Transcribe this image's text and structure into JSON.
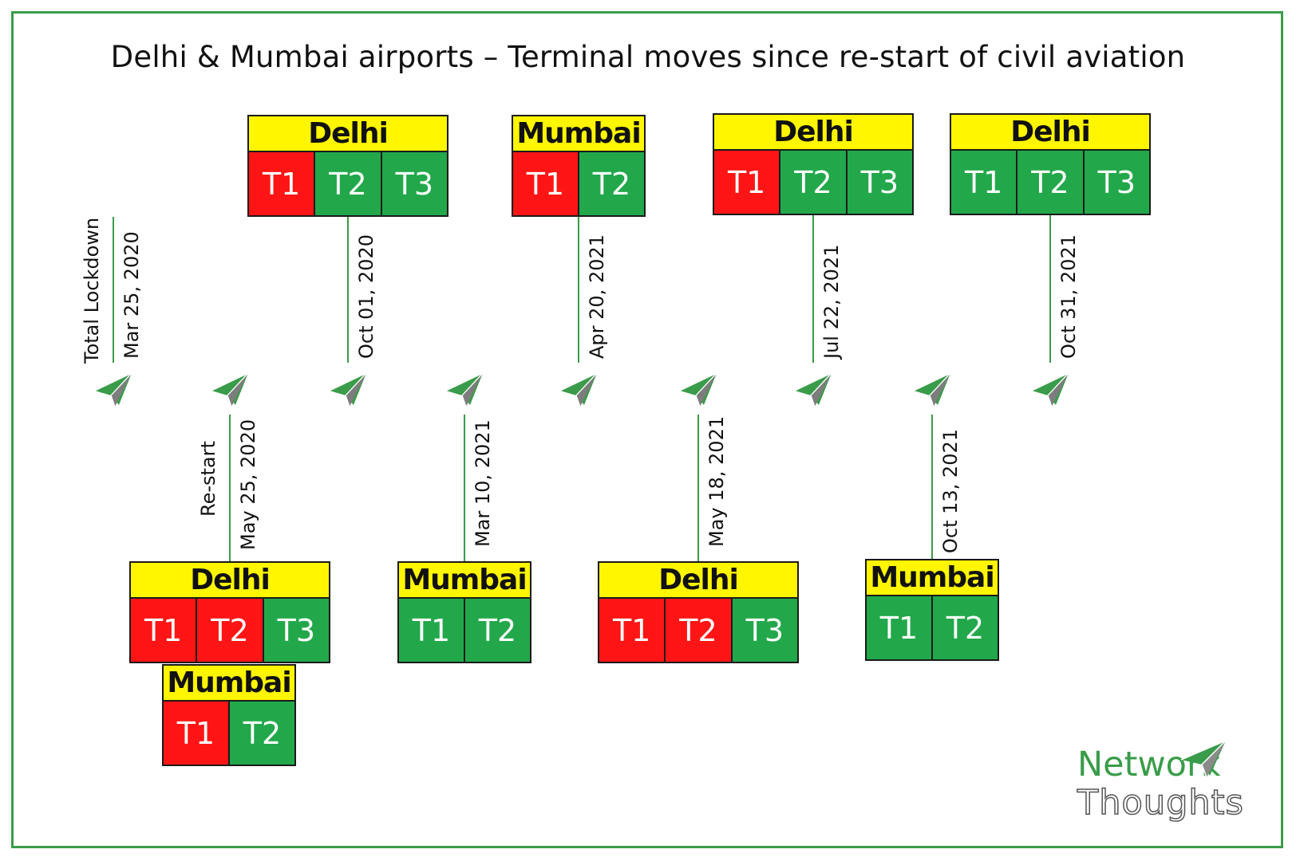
{
  "title": "Delhi & Mumbai airports – Terminal moves since re-start of civil aviation",
  "colors": {
    "closed": "#ff1515",
    "open": "#22a84a",
    "header": "#fff600",
    "accent": "#3a9c4a"
  },
  "events": [
    {
      "date": "Mar 25, 2020",
      "note": "Total Lockdown",
      "boxes": []
    },
    {
      "date": "May 25, 2020",
      "note": "Re-start",
      "boxes": [
        {
          "airport": "Delhi",
          "terminals": [
            {
              "label": "T1",
              "status": "closed"
            },
            {
              "label": "T2",
              "status": "closed"
            },
            {
              "label": "T3",
              "status": "open"
            }
          ]
        },
        {
          "airport": "Mumbai",
          "terminals": [
            {
              "label": "T1",
              "status": "closed"
            },
            {
              "label": "T2",
              "status": "open"
            }
          ]
        }
      ]
    },
    {
      "date": "Oct 01, 2020",
      "note": "",
      "boxes": [
        {
          "airport": "Delhi",
          "terminals": [
            {
              "label": "T1",
              "status": "closed"
            },
            {
              "label": "T2",
              "status": "open"
            },
            {
              "label": "T3",
              "status": "open"
            }
          ]
        }
      ]
    },
    {
      "date": "Mar 10, 2021",
      "note": "",
      "boxes": [
        {
          "airport": "Mumbai",
          "terminals": [
            {
              "label": "T1",
              "status": "open"
            },
            {
              "label": "T2",
              "status": "open"
            }
          ]
        }
      ]
    },
    {
      "date": "Apr 20, 2021",
      "note": "",
      "boxes": [
        {
          "airport": "Mumbai",
          "terminals": [
            {
              "label": "T1",
              "status": "closed"
            },
            {
              "label": "T2",
              "status": "open"
            }
          ]
        }
      ]
    },
    {
      "date": "May 18, 2021",
      "note": "",
      "boxes": [
        {
          "airport": "Delhi",
          "terminals": [
            {
              "label": "T1",
              "status": "closed"
            },
            {
              "label": "T2",
              "status": "closed"
            },
            {
              "label": "T3",
              "status": "open"
            }
          ]
        }
      ]
    },
    {
      "date": "Jul 22, 2021",
      "note": "",
      "boxes": [
        {
          "airport": "Delhi",
          "terminals": [
            {
              "label": "T1",
              "status": "closed"
            },
            {
              "label": "T2",
              "status": "open"
            },
            {
              "label": "T3",
              "status": "open"
            }
          ]
        }
      ]
    },
    {
      "date": "Oct 13, 2021",
      "note": "",
      "boxes": [
        {
          "airport": "Mumbai",
          "terminals": [
            {
              "label": "T1",
              "status": "open"
            },
            {
              "label": "T2",
              "status": "open"
            }
          ]
        }
      ]
    },
    {
      "date": "Oct 31, 2021",
      "note": "",
      "boxes": [
        {
          "airport": "Delhi",
          "terminals": [
            {
              "label": "T1",
              "status": "open"
            },
            {
              "label": "T2",
              "status": "open"
            },
            {
              "label": "T3",
              "status": "open"
            }
          ]
        }
      ]
    }
  ],
  "logo": {
    "line1": "Network",
    "line2": "Thoughts",
    "icon": "paper-plane-icon"
  }
}
